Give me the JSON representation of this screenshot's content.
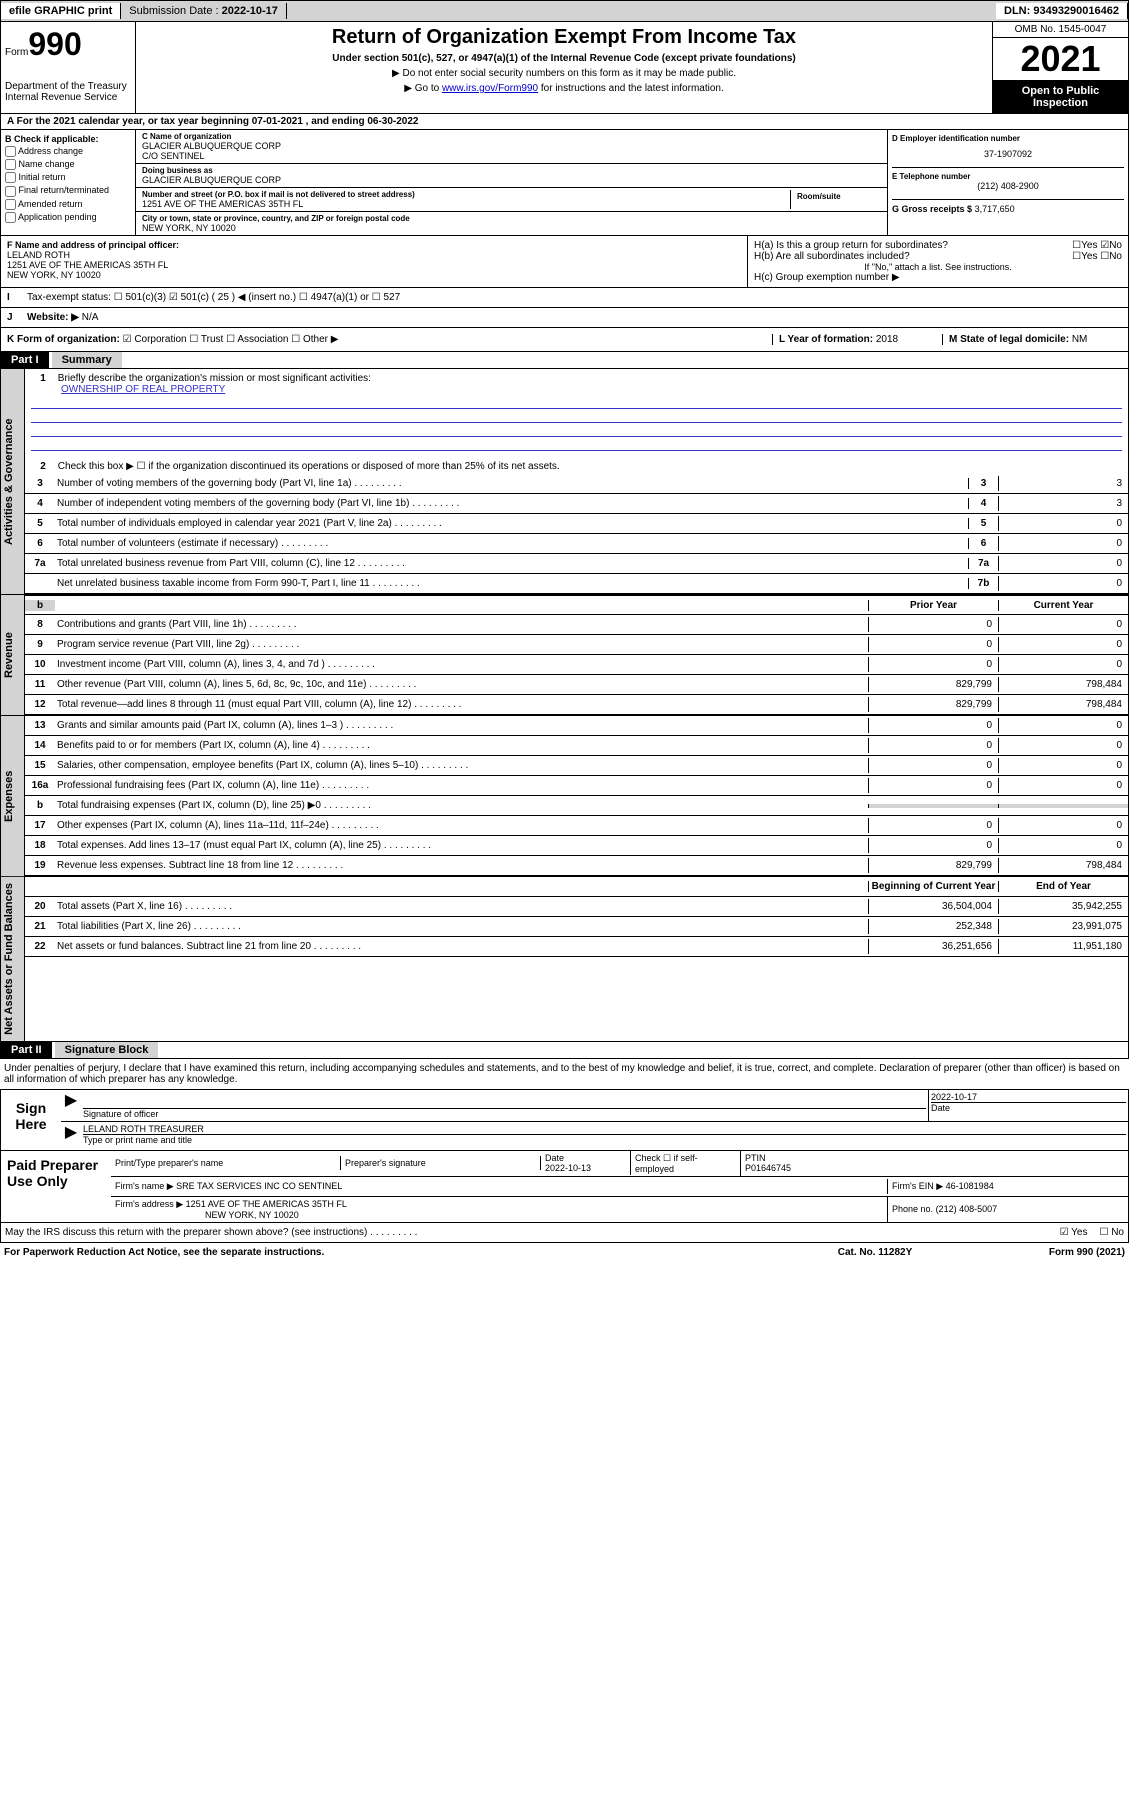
{
  "topbar": {
    "efile": "efile GRAPHIC print",
    "submission_label": "Submission Date :",
    "submission_date": "2022-10-17",
    "dln_label": "DLN:",
    "dln": "93493290016462"
  },
  "header": {
    "form_label": "Form",
    "form_number": "990",
    "title": "Return of Organization Exempt From Income Tax",
    "subtitle": "Under section 501(c), 527, or 4947(a)(1) of the Internal Revenue Code (except private foundations)",
    "instruction1": "▶ Do not enter social security numbers on this form as it may be made public.",
    "instruction2_pre": "▶ Go to ",
    "instruction2_link": "www.irs.gov/Form990",
    "instruction2_post": " for instructions and the latest information.",
    "dept": "Department of the Treasury",
    "irs": "Internal Revenue Service",
    "omb": "OMB No. 1545-0047",
    "year": "2021",
    "inspection": "Open to Public Inspection"
  },
  "row_a": {
    "text": "For the 2021 calendar year, or tax year beginning ",
    "begin": "07-01-2021",
    "mid": "  , and ending ",
    "end": "06-30-2022"
  },
  "section_b": {
    "label": "B Check if applicable:",
    "items": [
      "Address change",
      "Name change",
      "Initial return",
      "Final return/terminated",
      "Amended return",
      "Application pending"
    ]
  },
  "section_c": {
    "name_label": "C Name of organization",
    "name1": "GLACIER ALBUQUERQUE CORP",
    "name2": "C/O SENTINEL",
    "dba_label": "Doing business as",
    "dba": "GLACIER ALBUQUERQUE CORP",
    "street_label": "Number and street (or P.O. box if mail is not delivered to street address)",
    "room_label": "Room/suite",
    "street": "1251 AVE OF THE AMERICAS 35TH FL",
    "city_label": "City or town, state or province, country, and ZIP or foreign postal code",
    "city": "NEW YORK, NY  10020"
  },
  "section_d": {
    "ein_label": "D Employer identification number",
    "ein": "37-1907092",
    "phone_label": "E Telephone number",
    "phone": "(212) 408-2900",
    "gross_label": "G Gross receipts $",
    "gross": "3,717,650"
  },
  "section_f": {
    "label": "F Name and address of principal officer:",
    "name": "LELAND ROTH",
    "addr1": "1251 AVE OF THE AMERICAS 35TH FL",
    "addr2": "NEW YORK, NY  10020"
  },
  "section_h": {
    "ha": "H(a)  Is this a group return for subordinates?",
    "hb": "H(b)  Are all subordinates included?",
    "hb_note": "If \"No,\" attach a list. See instructions.",
    "hc": "H(c)  Group exemption number ▶",
    "yes": "Yes",
    "no": "No"
  },
  "row_i": {
    "label": "Tax-exempt status:",
    "opts": [
      "501(c)(3)",
      "501(c) ( 25 ) ◀ (insert no.)",
      "4947(a)(1) or",
      "527"
    ]
  },
  "row_j": {
    "label": "Website: ▶",
    "value": "N/A"
  },
  "row_k": {
    "label": "K Form of organization:",
    "opts": [
      "Corporation",
      "Trust",
      "Association",
      "Other ▶"
    ],
    "l_label": "L Year of formation:",
    "l_val": "2018",
    "m_label": "M State of legal domicile:",
    "m_val": "NM"
  },
  "part1": {
    "header": "Part I",
    "title": "Summary",
    "line1": "Briefly describe the organization's mission or most significant activities:",
    "mission": "OWNERSHIP OF REAL PROPERTY",
    "line2": "Check this box ▶ ☐  if the organization discontinued its operations or disposed of more than 25% of its net assets.",
    "lines_single": [
      {
        "n": "3",
        "d": "Number of voting members of the governing body (Part VI, line 1a)",
        "v": "3"
      },
      {
        "n": "4",
        "d": "Number of independent voting members of the governing body (Part VI, line 1b)",
        "v": "3"
      },
      {
        "n": "5",
        "d": "Total number of individuals employed in calendar year 2021 (Part V, line 2a)",
        "v": "0"
      },
      {
        "n": "6",
        "d": "Total number of volunteers (estimate if necessary)",
        "v": "0"
      },
      {
        "n": "7a",
        "d": "Total unrelated business revenue from Part VIII, column (C), line 12",
        "v": "0"
      },
      {
        "n": "",
        "d": "Net unrelated business taxable income from Form 990-T, Part I, line 11",
        "box": "7b",
        "v": "0"
      }
    ],
    "col_prior": "Prior Year",
    "col_current": "Current Year",
    "revenue": [
      {
        "n": "8",
        "d": "Contributions and grants (Part VIII, line 1h)",
        "p": "0",
        "c": "0"
      },
      {
        "n": "9",
        "d": "Program service revenue (Part VIII, line 2g)",
        "p": "0",
        "c": "0"
      },
      {
        "n": "10",
        "d": "Investment income (Part VIII, column (A), lines 3, 4, and 7d )",
        "p": "0",
        "c": "0"
      },
      {
        "n": "11",
        "d": "Other revenue (Part VIII, column (A), lines 5, 6d, 8c, 9c, 10c, and 11e)",
        "p": "829,799",
        "c": "798,484"
      },
      {
        "n": "12",
        "d": "Total revenue—add lines 8 through 11 (must equal Part VIII, column (A), line 12)",
        "p": "829,799",
        "c": "798,484"
      }
    ],
    "expenses": [
      {
        "n": "13",
        "d": "Grants and similar amounts paid (Part IX, column (A), lines 1–3 )",
        "p": "0",
        "c": "0"
      },
      {
        "n": "14",
        "d": "Benefits paid to or for members (Part IX, column (A), line 4)",
        "p": "0",
        "c": "0"
      },
      {
        "n": "15",
        "d": "Salaries, other compensation, employee benefits (Part IX, column (A), lines 5–10)",
        "p": "0",
        "c": "0"
      },
      {
        "n": "16a",
        "d": "Professional fundraising fees (Part IX, column (A), line 11e)",
        "p": "0",
        "c": "0"
      },
      {
        "n": "b",
        "d": "Total fundraising expenses (Part IX, column (D), line 25) ▶0",
        "p": "",
        "c": "",
        "shaded": true
      },
      {
        "n": "17",
        "d": "Other expenses (Part IX, column (A), lines 11a–11d, 11f–24e)",
        "p": "0",
        "c": "0"
      },
      {
        "n": "18",
        "d": "Total expenses. Add lines 13–17 (must equal Part IX, column (A), line 25)",
        "p": "0",
        "c": "0"
      },
      {
        "n": "19",
        "d": "Revenue less expenses. Subtract line 18 from line 12",
        "p": "829,799",
        "c": "798,484"
      }
    ],
    "col_begin": "Beginning of Current Year",
    "col_end": "End of Year",
    "netassets": [
      {
        "n": "20",
        "d": "Total assets (Part X, line 16)",
        "p": "36,504,004",
        "c": "35,942,255"
      },
      {
        "n": "21",
        "d": "Total liabilities (Part X, line 26)",
        "p": "252,348",
        "c": "23,991,075"
      },
      {
        "n": "22",
        "d": "Net assets or fund balances. Subtract line 21 from line 20",
        "p": "36,251,656",
        "c": "11,951,180"
      }
    ],
    "tabs": {
      "gov": "Activities & Governance",
      "rev": "Revenue",
      "exp": "Expenses",
      "net": "Net Assets or Fund Balances"
    }
  },
  "part2": {
    "header": "Part II",
    "title": "Signature Block",
    "penalty": "Under penalties of perjury, I declare that I have examined this return, including accompanying schedules and statements, and to the best of my knowledge and belief, it is true, correct, and complete. Declaration of preparer (other than officer) is based on all information of which preparer has any knowledge."
  },
  "sign": {
    "label": "Sign Here",
    "sig_label": "Signature of officer",
    "date": "2022-10-17",
    "date_label": "Date",
    "name": "LELAND ROTH  TREASURER",
    "name_label": "Type or print name and title"
  },
  "paid": {
    "label": "Paid Preparer Use Only",
    "h1": "Print/Type preparer's name",
    "h2": "Preparer's signature",
    "h3": "Date",
    "date": "2022-10-13",
    "h4": "Check ☐ if self-employed",
    "h5": "PTIN",
    "ptin": "P01646745",
    "firm_label": "Firm's name    ▶",
    "firm": "SRE TAX SERVICES INC CO SENTINEL",
    "ein_label": "Firm's EIN ▶",
    "ein": "46-1081984",
    "addr_label": "Firm's address ▶",
    "addr1": "1251 AVE OF THE AMERICAS 35TH FL",
    "addr2": "NEW YORK, NY  10020",
    "phone_label": "Phone no.",
    "phone": "(212) 408-5007"
  },
  "footer": {
    "discuss": "May the IRS discuss this return with the preparer shown above? (see instructions)",
    "yes": "Yes",
    "no": "No",
    "paperwork": "For Paperwork Reduction Act Notice, see the separate instructions.",
    "cat": "Cat. No. 11282Y",
    "form": "Form 990 (2021)"
  }
}
